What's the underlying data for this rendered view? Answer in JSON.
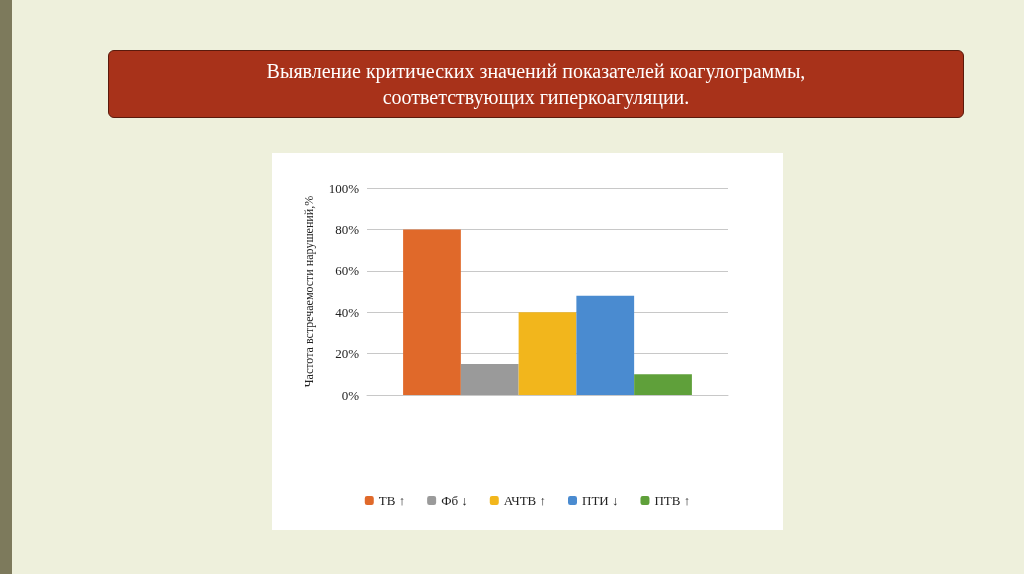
{
  "chart_data": {
    "type": "bar",
    "title": "Выявление критических значений показателей коагулограммы, соответствующих гиперкоагуляции.",
    "ylabel": "Частота встречаемости нарушений,%",
    "categories": [
      null
    ],
    "series": [
      {
        "name": "ТВ ↑",
        "color": "#e0692a",
        "values": [
          80
        ]
      },
      {
        "name": "Фб ↓",
        "color": "#9a9a9a",
        "values": [
          15
        ]
      },
      {
        "name": "АЧТВ ↑",
        "color": "#f2b61c",
        "values": [
          40
        ]
      },
      {
        "name": "ПТИ ↓",
        "color": "#4a8bd0",
        "values": [
          48
        ]
      },
      {
        "name": "ПТВ ↑",
        "color": "#5fa03a",
        "values": [
          10
        ]
      }
    ],
    "ylim": [
      0,
      100
    ],
    "yticks": [
      {
        "value": 0,
        "label": "0%"
      },
      {
        "value": 20,
        "label": "20%"
      },
      {
        "value": 40,
        "label": "40%"
      },
      {
        "value": 60,
        "label": "60%"
      },
      {
        "value": 80,
        "label": "80%"
      },
      {
        "value": 100,
        "label": "100%"
      }
    ],
    "grid": "y",
    "legend": "bottom"
  }
}
